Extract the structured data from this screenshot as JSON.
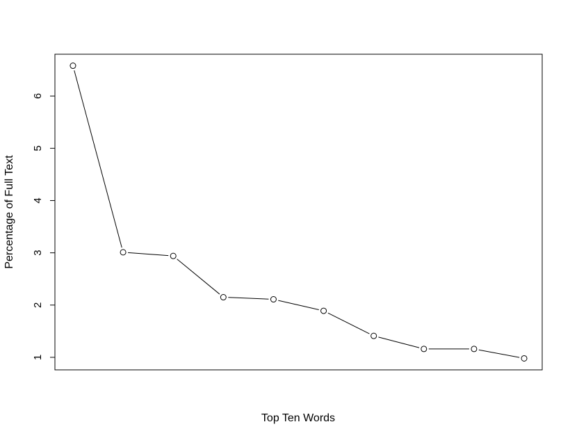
{
  "chart_data": {
    "type": "line",
    "title": "",
    "xlabel": "Top Ten Words",
    "ylabel": "Percentage of Full Text",
    "x": [
      1,
      2,
      3,
      4,
      5,
      6,
      7,
      8,
      9,
      10
    ],
    "series": [
      {
        "values": [
          6.58,
          3.01,
          2.94,
          2.15,
          2.11,
          1.89,
          1.41,
          1.16,
          1.16,
          0.98
        ]
      }
    ],
    "yticks": [
      1,
      2,
      3,
      4,
      5,
      6
    ],
    "ylim": [
      0.76,
      6.8
    ],
    "xlim": [
      0.64,
      10.36
    ],
    "x_axis_drawn": false,
    "grid": false,
    "marker": "open-circle",
    "line_color": "#000000"
  }
}
